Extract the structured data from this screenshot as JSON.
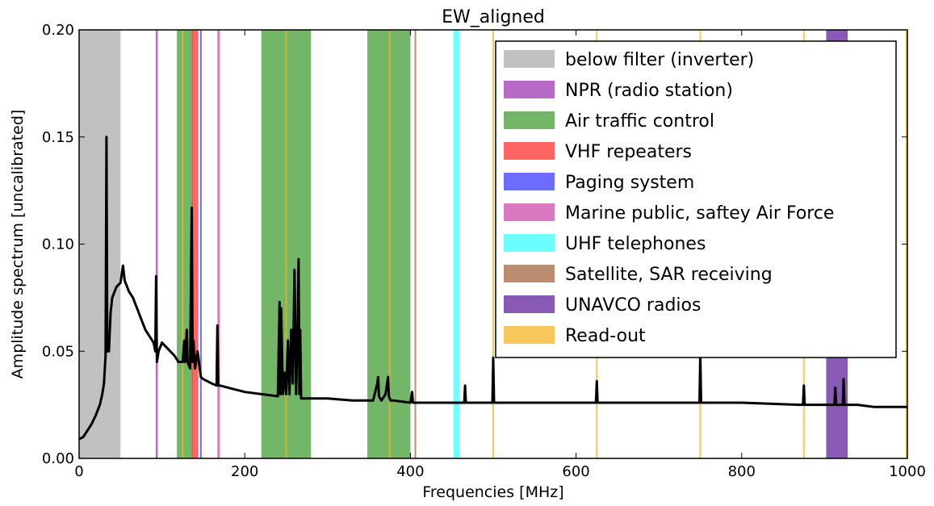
{
  "chart_data": {
    "type": "line",
    "title": "EW_aligned",
    "xlabel": "Frequencies [MHz]",
    "ylabel": "Amplitude spectrum [uncalibrated]",
    "xlim": [
      0,
      1000
    ],
    "ylim": [
      0,
      0.2
    ],
    "xticks": [
      0,
      200,
      400,
      600,
      800,
      1000
    ],
    "yticks": [
      0.0,
      0.05,
      0.1,
      0.15,
      0.2
    ],
    "xtick_labels": [
      "0",
      "200",
      "400",
      "600",
      "800",
      "1000"
    ],
    "ytick_labels": [
      "0.00",
      "0.05",
      "0.10",
      "0.15",
      "0.20"
    ],
    "grid": false,
    "legend_position": "top-right",
    "bands": [
      {
        "name": "below filter (inverter)",
        "color": "#a9a9a9",
        "ranges": [
          [
            0,
            50
          ]
        ]
      },
      {
        "name": "NPR (radio station)",
        "color": "#9b30b0",
        "ranges": [
          [
            92.5,
            95
          ]
        ]
      },
      {
        "name": "Air traffic control",
        "color": "#3e9a2e",
        "ranges": [
          [
            118,
            137
          ],
          [
            220,
            280
          ],
          [
            348,
            400
          ]
        ]
      },
      {
        "name": "VHF repeaters",
        "color": "#ff2a2a",
        "ranges": [
          [
            136,
            144
          ]
        ]
      },
      {
        "name": "Paging system",
        "color": "#3333ff",
        "ranges": [
          [
            146,
            148
          ]
        ]
      },
      {
        "name": "Marine public, saftey Air Force",
        "color": "#cc44aa",
        "ranges": [
          [
            167,
            170
          ]
        ]
      },
      {
        "name": "UHF telephones",
        "color": "#33ffff",
        "ranges": [
          [
            452,
            459
          ]
        ]
      },
      {
        "name": "Satellite, SAR receiving",
        "color": "#a0603a",
        "ranges": [
          [
            405,
            406.5
          ]
        ]
      },
      {
        "name": "UNAVCO radios",
        "color": "#5a1a9a",
        "ranges": [
          [
            902,
            928
          ]
        ]
      },
      {
        "name": "Read-out",
        "color": "#f5b31f",
        "ranges": [
          [
            124,
            126
          ],
          [
            249,
            251
          ],
          [
            374,
            376
          ],
          [
            499,
            501
          ],
          [
            624,
            626
          ],
          [
            749,
            751
          ],
          [
            874,
            876
          ],
          [
            998,
            1000
          ]
        ]
      }
    ],
    "series": [
      {
        "color": "#000000",
        "x": [
          0,
          5,
          10,
          15,
          20,
          25,
          28,
          30,
          32,
          33,
          34,
          36,
          38,
          40,
          45,
          50,
          53,
          55,
          60,
          65,
          70,
          75,
          80,
          85,
          90,
          92,
          93,
          94,
          96,
          100,
          110,
          115,
          120,
          125,
          127,
          128,
          130,
          131,
          132,
          134,
          136,
          137,
          138,
          140,
          143,
          147,
          150,
          160,
          166,
          167,
          168,
          170,
          180,
          200,
          220,
          240,
          242,
          243,
          244,
          246,
          248,
          250,
          252,
          254,
          256,
          258,
          260,
          262,
          264,
          265,
          266,
          267,
          268,
          270,
          280,
          300,
          330,
          355,
          360,
          361,
          362,
          365,
          370,
          373,
          374,
          376,
          380,
          400,
          402,
          403,
          404,
          420,
          460,
          465,
          466,
          467,
          470,
          495,
          499,
          500,
          501,
          505,
          560,
          620,
          624,
          625,
          626,
          630,
          700,
          745,
          749,
          750,
          751,
          755,
          800,
          870,
          874,
          875,
          876,
          880,
          900,
          910,
          912,
          913,
          914,
          918,
          920,
          922,
          923,
          924,
          926,
          940,
          960,
          980,
          1000
        ],
        "y": [
          0.009,
          0.01,
          0.013,
          0.016,
          0.02,
          0.025,
          0.03,
          0.035,
          0.048,
          0.15,
          0.05,
          0.05,
          0.068,
          0.075,
          0.08,
          0.082,
          0.09,
          0.083,
          0.078,
          0.075,
          0.07,
          0.065,
          0.06,
          0.057,
          0.054,
          0.05,
          0.085,
          0.045,
          0.05,
          0.054,
          0.05,
          0.048,
          0.045,
          0.045,
          0.055,
          0.045,
          0.06,
          0.045,
          0.044,
          0.042,
          0.117,
          0.045,
          0.055,
          0.042,
          0.05,
          0.038,
          0.037,
          0.035,
          0.034,
          0.062,
          0.034,
          0.034,
          0.033,
          0.031,
          0.03,
          0.029,
          0.073,
          0.03,
          0.07,
          0.03,
          0.04,
          0.03,
          0.055,
          0.03,
          0.06,
          0.035,
          0.088,
          0.03,
          0.065,
          0.093,
          0.03,
          0.06,
          0.028,
          0.028,
          0.028,
          0.028,
          0.027,
          0.027,
          0.035,
          0.038,
          0.029,
          0.027,
          0.03,
          0.038,
          0.029,
          0.027,
          0.027,
          0.026,
          0.031,
          0.026,
          0.026,
          0.026,
          0.026,
          0.026,
          0.034,
          0.026,
          0.026,
          0.026,
          0.026,
          0.047,
          0.026,
          0.026,
          0.026,
          0.026,
          0.026,
          0.036,
          0.026,
          0.026,
          0.026,
          0.026,
          0.026,
          0.048,
          0.026,
          0.026,
          0.026,
          0.025,
          0.025,
          0.034,
          0.025,
          0.025,
          0.025,
          0.025,
          0.025,
          0.033,
          0.025,
          0.025,
          0.025,
          0.025,
          0.037,
          0.025,
          0.025,
          0.025,
          0.024,
          0.024,
          0.024
        ]
      }
    ]
  }
}
